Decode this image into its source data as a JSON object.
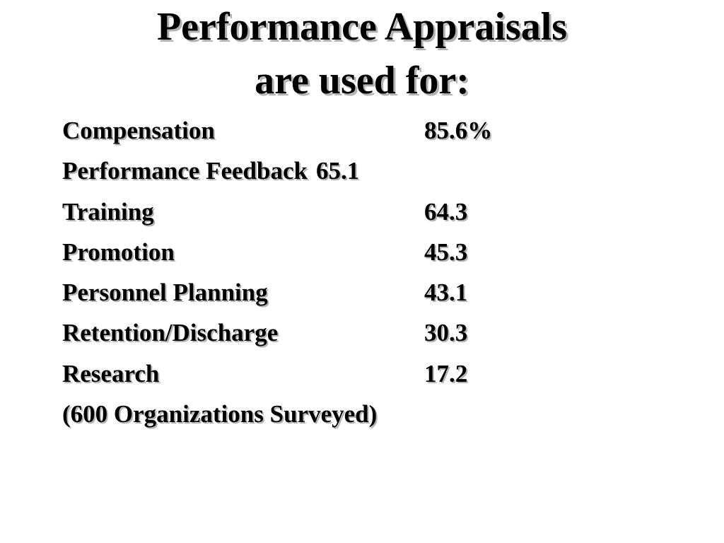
{
  "title": {
    "line1": "Performance Appraisals",
    "line2": "are used for:"
  },
  "rows": [
    {
      "label": "Compensation",
      "value": "85.6%"
    },
    {
      "label": "Performance Feedback",
      "value": "65.1"
    },
    {
      "label": "Training",
      "value": "64.3"
    },
    {
      "label": "Promotion",
      "value": "45.3"
    },
    {
      "label": "Personnel Planning",
      "value": "43.1"
    },
    {
      "label": "Retention/Discharge",
      "value": "30.3"
    },
    {
      "label": "Research",
      "value": "17.2"
    }
  ],
  "footnote": "(600 Organizations Surveyed)",
  "colors": {
    "text": "#000000",
    "shadow": "#b3b3b3",
    "background": "#ffffff"
  }
}
